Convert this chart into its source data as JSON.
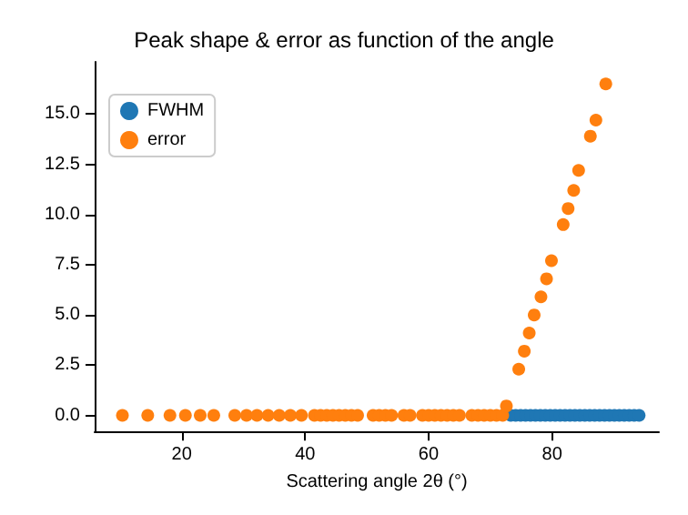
{
  "chart_data": {
    "type": "scatter",
    "title": "Peak shape & error as function of the angle",
    "xlabel": "Scattering angle 2θ (°)",
    "xlim": [
      5.9,
      97.3
    ],
    "xticks": [
      20,
      40,
      60,
      80
    ],
    "ylim": [
      -0.8,
      17.6
    ],
    "yticks": [
      {
        "value": 0,
        "label": "0.0"
      },
      {
        "value": 2.5,
        "label": "2.5"
      },
      {
        "value": 5,
        "label": "5.0"
      },
      {
        "value": 7.5,
        "label": "7.5"
      },
      {
        "value": 10,
        "label": "10.0"
      },
      {
        "value": 12.5,
        "label": "12.5"
      },
      {
        "value": 15,
        "label": "15.0"
      }
    ],
    "grid": false,
    "legend": "top left",
    "marker": "circle",
    "series": [
      {
        "name": "FWHM",
        "color": "#1f77b4",
        "x": [
          73.3,
          74.1,
          74.9,
          75.7,
          76.5,
          77.3,
          78.1,
          78.9,
          79.7,
          80.5,
          81.3,
          82.1,
          82.9,
          83.7,
          84.5,
          85.3,
          86.1,
          86.9,
          87.7,
          88.5,
          89.3,
          90.1,
          90.9,
          91.7,
          92.5,
          93.3,
          94.1
        ],
        "values": [
          0,
          0,
          0,
          0,
          0,
          0,
          0,
          0,
          0,
          0,
          0,
          0,
          0,
          0,
          0,
          0,
          0,
          0,
          0,
          0,
          0,
          0,
          0,
          0,
          0,
          0,
          0
        ]
      },
      {
        "name": "error",
        "color": "#ff7f0e",
        "x": [
          10.4,
          14.5,
          18.1,
          20.6,
          23,
          25.2,
          28.6,
          30.5,
          32.2,
          34,
          35.8,
          37.6,
          39.4,
          41.5,
          42.5,
          43.5,
          44.5,
          45.5,
          46.5,
          47.5,
          48.5,
          51,
          52,
          53,
          54,
          56,
          57,
          59,
          60,
          61,
          62,
          63,
          64,
          65,
          67,
          68,
          69,
          70,
          71,
          72,
          72.6,
          74.6,
          75.5,
          76.3,
          77.1,
          78.2,
          79.1,
          79.9,
          81.8,
          82.6,
          83.5,
          84.3,
          86.2,
          87.1,
          88.7
        ],
        "values": [
          0,
          0,
          0,
          0,
          0,
          0,
          0,
          0,
          0,
          0,
          0,
          0,
          0,
          0,
          0,
          0,
          0,
          0,
          0,
          0,
          0,
          0,
          0,
          0,
          0,
          0,
          0,
          0,
          0,
          0,
          0,
          0,
          0,
          0,
          0,
          0,
          0,
          0,
          0,
          0,
          0.47,
          2.3,
          3.2,
          4.1,
          5,
          5.9,
          6.8,
          7.7,
          9.5,
          10.3,
          11.2,
          12.2,
          13.9,
          14.7,
          16.5
        ]
      }
    ]
  }
}
